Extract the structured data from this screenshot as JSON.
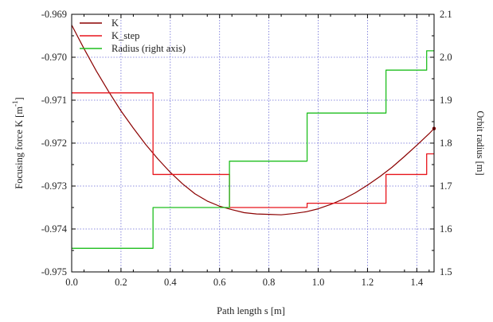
{
  "chart_data": {
    "type": "line",
    "title": "",
    "xlabel": "Path length s [m]",
    "ylabel_left_main": "Focusing force K [m",
    "ylabel_left_sup": "-1",
    "ylabel_left_end": "]",
    "ylabel_right": "Orbit radius [m]",
    "xlim": [
      0,
      1.47
    ],
    "ylim_left": [
      -0.975,
      -0.969
    ],
    "ylim_right": [
      1.5,
      2.1
    ],
    "x_ticks": [
      0.0,
      0.2,
      0.4,
      0.6,
      0.8,
      1.0,
      1.2,
      1.4
    ],
    "x_tick_labels": [
      "0.0",
      "0.2",
      "0.4",
      "0.6",
      "0.8",
      "1.0",
      "1.2",
      "1.4"
    ],
    "y_left_ticks": [
      -0.969,
      -0.97,
      -0.971,
      -0.972,
      -0.973,
      -0.974,
      -0.975
    ],
    "y_left_tick_labels": [
      "-0.969",
      "-0.970",
      "-0.971",
      "-0.972",
      "-0.973",
      "-0.974",
      "-0.975"
    ],
    "y_right_ticks": [
      1.5,
      1.6,
      1.7,
      1.8,
      1.9,
      2.0,
      2.1
    ],
    "y_right_tick_labels": [
      "1.5",
      "1.6",
      "1.7",
      "1.8",
      "1.9",
      "2.0",
      "2.1"
    ],
    "grid": true,
    "legend_position": "top-left",
    "series": [
      {
        "name": "K",
        "axis": "left",
        "color": "#8b0000",
        "style": "smooth",
        "x": [
          0.0,
          0.05,
          0.1,
          0.15,
          0.2,
          0.25,
          0.3,
          0.35,
          0.4,
          0.45,
          0.5,
          0.55,
          0.6,
          0.65,
          0.7,
          0.75,
          0.8,
          0.85,
          0.9,
          0.95,
          1.0,
          1.05,
          1.1,
          1.15,
          1.2,
          1.25,
          1.3,
          1.35,
          1.4,
          1.45,
          1.47
        ],
        "y": [
          -0.96925,
          -0.9698,
          -0.97032,
          -0.9708,
          -0.97125,
          -0.97165,
          -0.97203,
          -0.97237,
          -0.97268,
          -0.97295,
          -0.97318,
          -0.97335,
          -0.97347,
          -0.97355,
          -0.97362,
          -0.97365,
          -0.97366,
          -0.97367,
          -0.97364,
          -0.9736,
          -0.97353,
          -0.97343,
          -0.97331,
          -0.97316,
          -0.97298,
          -0.97278,
          -0.97256,
          -0.97231,
          -0.97205,
          -0.97178,
          -0.97166
        ]
      },
      {
        "name": "K_step",
        "axis": "left",
        "color": "#e8141b",
        "style": "step",
        "x": [
          0.0,
          0.33,
          0.33,
          0.64,
          0.64,
          0.955,
          0.955,
          1.275,
          1.275,
          1.44,
          1.44,
          1.47
        ],
        "y": [
          -0.97083,
          -0.97083,
          -0.97273,
          -0.97273,
          -0.9735,
          -0.9735,
          -0.9734,
          -0.9734,
          -0.97273,
          -0.97273,
          -0.97225,
          -0.97225
        ]
      },
      {
        "name": "Radius (right axis)",
        "axis": "right",
        "color": "#1fbf1f",
        "style": "step",
        "x": [
          0.0,
          0.33,
          0.33,
          0.64,
          0.64,
          0.955,
          0.955,
          1.275,
          1.275,
          1.44,
          1.44,
          1.47
        ],
        "y": [
          1.555,
          1.555,
          1.65,
          1.65,
          1.758,
          1.758,
          1.87,
          1.87,
          1.97,
          1.97,
          2.015,
          2.015
        ]
      }
    ]
  }
}
